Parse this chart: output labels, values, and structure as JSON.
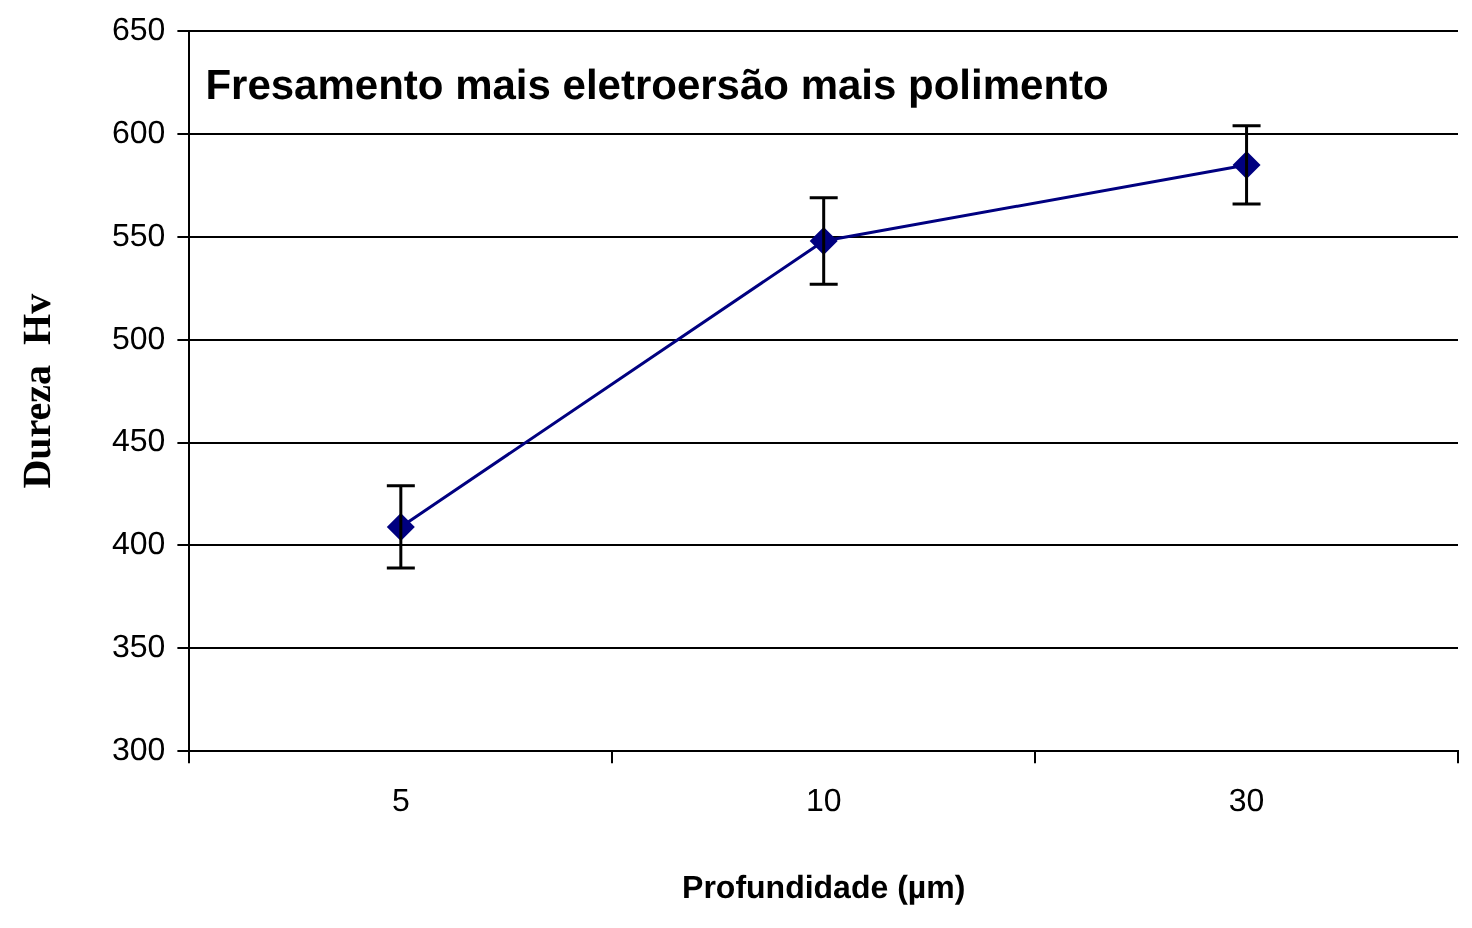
{
  "chart_data": {
    "type": "line",
    "title": "Fresamento mais eletroersão mais polimento",
    "xlabel": "Profundidade (µm)",
    "ylabel": "Dureza  Hv",
    "categories": [
      "5",
      "10",
      "30"
    ],
    "series": [
      {
        "color": "#000080",
        "values": [
          409,
          548,
          585
        ],
        "errors": [
          20,
          21,
          19
        ]
      }
    ],
    "ylim": [
      300,
      650
    ],
    "yticks": [
      300,
      350,
      400,
      450,
      500,
      550,
      600,
      650
    ],
    "grid": "y",
    "legend": false,
    "marker": "diamond",
    "line_style": "solid"
  }
}
